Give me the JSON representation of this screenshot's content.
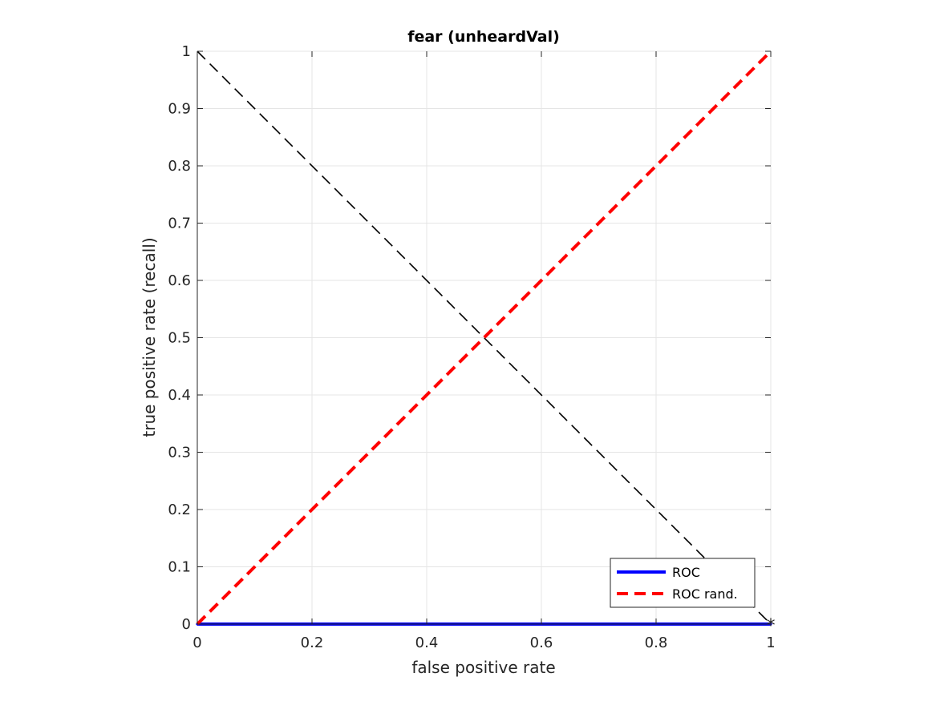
{
  "chart_data": {
    "type": "line",
    "title": "fear (unheardVal)",
    "xlabel": "false positive rate",
    "ylabel": "true positive rate (recall)",
    "xlim": [
      0,
      1
    ],
    "ylim": [
      0,
      1
    ],
    "xticks": [
      "0",
      "0.2",
      "0.4",
      "0.6",
      "0.8",
      "1"
    ],
    "yticks": [
      "0",
      "0.1",
      "0.2",
      "0.3",
      "0.4",
      "0.5",
      "0.6",
      "0.7",
      "0.8",
      "0.9",
      "1"
    ],
    "grid": true,
    "legend_position": "bottom-right",
    "series": [
      {
        "name": "ROC",
        "style": "solid",
        "color": "#0000ff",
        "x": [
          0,
          0.02,
          0.04,
          0.06,
          0.08,
          0.1,
          0.12,
          0.14,
          0.16,
          0.18,
          0.2,
          0.22,
          0.24,
          0.26,
          0.28,
          0.3,
          0.32,
          0.34,
          0.36,
          0.38,
          0.4,
          0.42,
          0.44,
          0.46,
          0.48,
          0.5,
          0.52,
          0.54,
          0.56,
          0.58,
          0.6,
          0.62,
          0.64,
          0.66,
          0.68,
          0.7,
          0.72,
          0.74,
          0.76,
          0.78,
          0.8,
          0.82,
          0.84,
          0.86,
          0.88,
          0.9,
          0.92,
          0.94,
          0.96,
          0.98,
          1
        ],
        "y": [
          0,
          0,
          0,
          0,
          0,
          0,
          0,
          0,
          0,
          0,
          0,
          0,
          0,
          0,
          0,
          0,
          0,
          0,
          0,
          0,
          0,
          0,
          0,
          0,
          0,
          0,
          0,
          0,
          0,
          0,
          0,
          0,
          0,
          0,
          0,
          0,
          0,
          0,
          0,
          0,
          0,
          0,
          0,
          0,
          0,
          0,
          0,
          0,
          0,
          0,
          0
        ]
      },
      {
        "name": "ROC rand.",
        "style": "dashed",
        "color": "#ff0000",
        "x": [
          0,
          1
        ],
        "y": [
          0,
          1
        ]
      }
    ],
    "reference_line": {
      "style": "dashed",
      "color": "#000000",
      "x": [
        0,
        1
      ],
      "y": [
        1,
        0
      ]
    },
    "marker": {
      "symbol": "*",
      "color": "#000000",
      "x": 1,
      "y": 0
    }
  }
}
